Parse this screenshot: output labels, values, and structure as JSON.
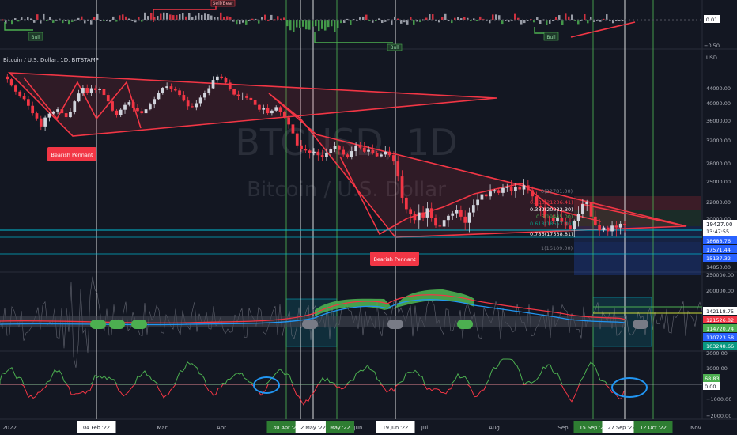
{
  "chart_data": {
    "type": "candlestick",
    "symbol_line": "Bitcoin / U.S. Dollar, 1D, BITSTAMP",
    "watermark": {
      "ticker": "BTCUSD, 1D",
      "name": "Bitcoin / U.S. Dollar"
    },
    "x_axis_labels": [
      "2022",
      "Mar",
      "Apr",
      "Jun",
      "Jul",
      "Aug",
      "Sep",
      "Nov"
    ],
    "x_date_badges": [
      {
        "label": "04 Feb '22",
        "style": "white"
      },
      {
        "label": "30 Apr '22",
        "style": "green"
      },
      {
        "label": "2 May '22",
        "style": "white"
      },
      {
        "label": "May '22",
        "style": "green"
      },
      {
        "label": "19 Jun '22",
        "style": "white"
      },
      {
        "label": "15 Sep '22",
        "style": "green"
      },
      {
        "label": "27 Sep '22",
        "style": "white"
      },
      {
        "label": "12 Oct '22",
        "style": "green"
      }
    ],
    "price_pane": {
      "unit": "USD",
      "y_ticks": [
        44000,
        40000,
        36000,
        32000,
        28000,
        25000,
        22000,
        20000,
        14850
      ],
      "ylim": [
        13000,
        52000
      ],
      "current_price": "19427.00",
      "countdown": "13:47:55",
      "price_badges": [
        {
          "label": "18688.76",
          "color": "#2962ff"
        },
        {
          "label": "17571.44",
          "color": "#2962ff"
        },
        {
          "label": "15137.32",
          "color": "#2962ff"
        }
      ],
      "fib_levels": [
        {
          "label": "0(22781.00)",
          "color": "#787b86"
        },
        {
          "label": "0.236(21206.41)",
          "color": "#f23645"
        },
        {
          "label": "0.382(20232.30)",
          "color": "#ffffff"
        },
        {
          "label": "0.5(19445.00)",
          "color": "#4caf50"
        },
        {
          "label": "0.618(18657.70)",
          "color": "#089981"
        },
        {
          "label": "0.786(17538.81)",
          "color": "#ffffff"
        },
        {
          "label": "1(16109.00)",
          "color": "#787b86"
        }
      ],
      "annotations": [
        "Bearish Pennant",
        "Bearish Pennant"
      ],
      "closes": [
        47200,
        46500,
        44800,
        43200,
        42000,
        41200,
        39500,
        37800,
        36600,
        34900,
        36800,
        37700,
        38200,
        38700,
        37800,
        36900,
        38100,
        40600,
        42700,
        44200,
        42800,
        44100,
        43600,
        43900,
        42300,
        40600,
        38400,
        37400,
        38600,
        39700,
        40400,
        39000,
        38300,
        37800,
        38700,
        39800,
        41200,
        42800,
        44200,
        44600,
        43900,
        43500,
        42300,
        40800,
        39400,
        39200,
        40100,
        41600,
        42900,
        44100,
        46300,
        47200,
        46800,
        45600,
        43800,
        42400,
        41900,
        42100,
        41500,
        40900,
        39700,
        38600,
        39000,
        37800,
        38400,
        39200,
        38100,
        36800,
        35300,
        33500,
        31200,
        30600,
        30300,
        29800,
        30100,
        29500,
        29200,
        29800,
        30500,
        31100,
        30400,
        29600,
        29100,
        30200,
        31200,
        30800,
        30100,
        30400,
        29900,
        29300,
        29600,
        30100,
        29500,
        28400,
        25900,
        22700,
        21200,
        20600,
        19900,
        20800,
        20200,
        21300,
        20100,
        19300,
        19200,
        19900,
        20400,
        20700,
        21100,
        20300,
        19600,
        20800,
        21700,
        22400,
        23200,
        22900,
        23600,
        23800,
        23400,
        24100,
        24300,
        23700,
        24200,
        23900,
        24500,
        23800,
        22900,
        21600,
        21400,
        20200,
        20100,
        19800,
        20200,
        19700,
        19300,
        18900,
        19800,
        20600,
        21800,
        22100,
        20300,
        19400,
        18800,
        19100,
        18700,
        19300,
        19100,
        19500,
        19427
      ]
    },
    "oscillator_top": {
      "y_ticks": [
        0.01,
        -0.5
      ],
      "labels": [
        "Bull",
        "Bull",
        "Bull",
        "Bull",
        "Bull",
        "Bull",
        "Sell/Bear"
      ]
    },
    "oscillator_mid": {
      "y_ticks": [
        250000,
        200000,
        150000
      ],
      "value_badges": [
        {
          "label": "142118.75",
          "color": "#ffffff"
        },
        {
          "label": "121526.82",
          "color": "#f23645"
        },
        {
          "label": "114720.74",
          "color": "#4caf50"
        },
        {
          "label": "110723.58",
          "color": "#2962ff"
        },
        {
          "label": "103248.66",
          "color": "#089981"
        }
      ]
    },
    "oscillator_bottom": {
      "y_ticks": [
        2000,
        1000,
        0,
        -1000,
        -2000
      ],
      "value_badges": [
        {
          "label": "68.83",
          "color": "#4caf50"
        },
        {
          "label": "0.00",
          "color": "#ffffff"
        }
      ]
    }
  }
}
